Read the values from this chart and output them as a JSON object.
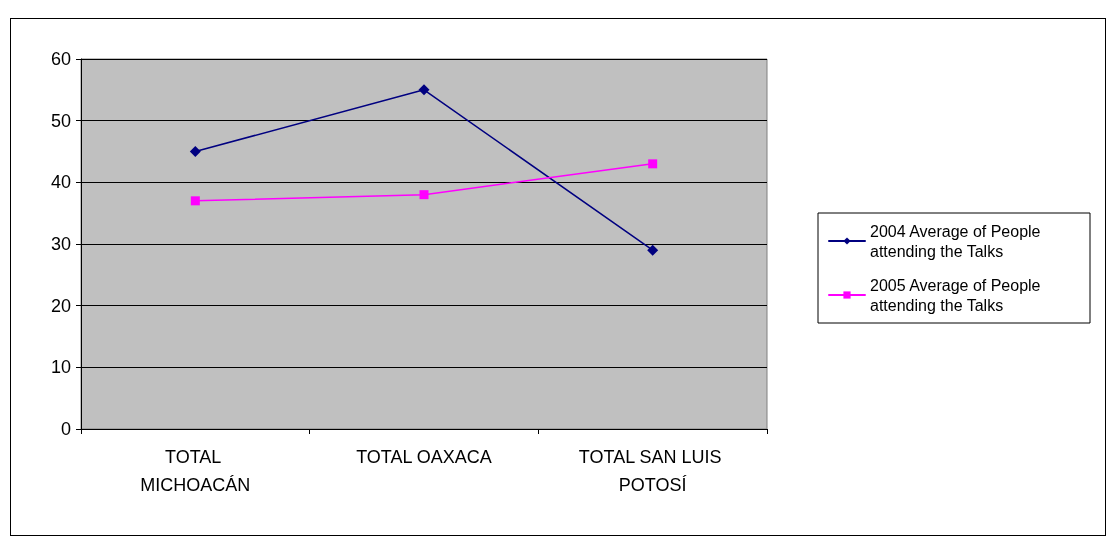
{
  "chart_data": {
    "type": "line",
    "categories": [
      "TOTAL MICHOACÁN",
      "TOTAL OAXACA",
      "TOTAL SAN LUIS POTOSÍ"
    ],
    "series": [
      {
        "name": "2004 Average of People attending the Talks",
        "color": "#000080",
        "values": [
          45,
          55,
          29
        ],
        "marker": "diamond"
      },
      {
        "name": "2005 Average of People attending the Talks",
        "color": "#ff00ff",
        "values": [
          37,
          38,
          43
        ],
        "marker": "square"
      }
    ],
    "ylim": [
      0,
      60
    ],
    "yticks": [
      0,
      10,
      20,
      30,
      40,
      50,
      60
    ],
    "grid": "y",
    "legend": "right",
    "line_style": "solid"
  }
}
